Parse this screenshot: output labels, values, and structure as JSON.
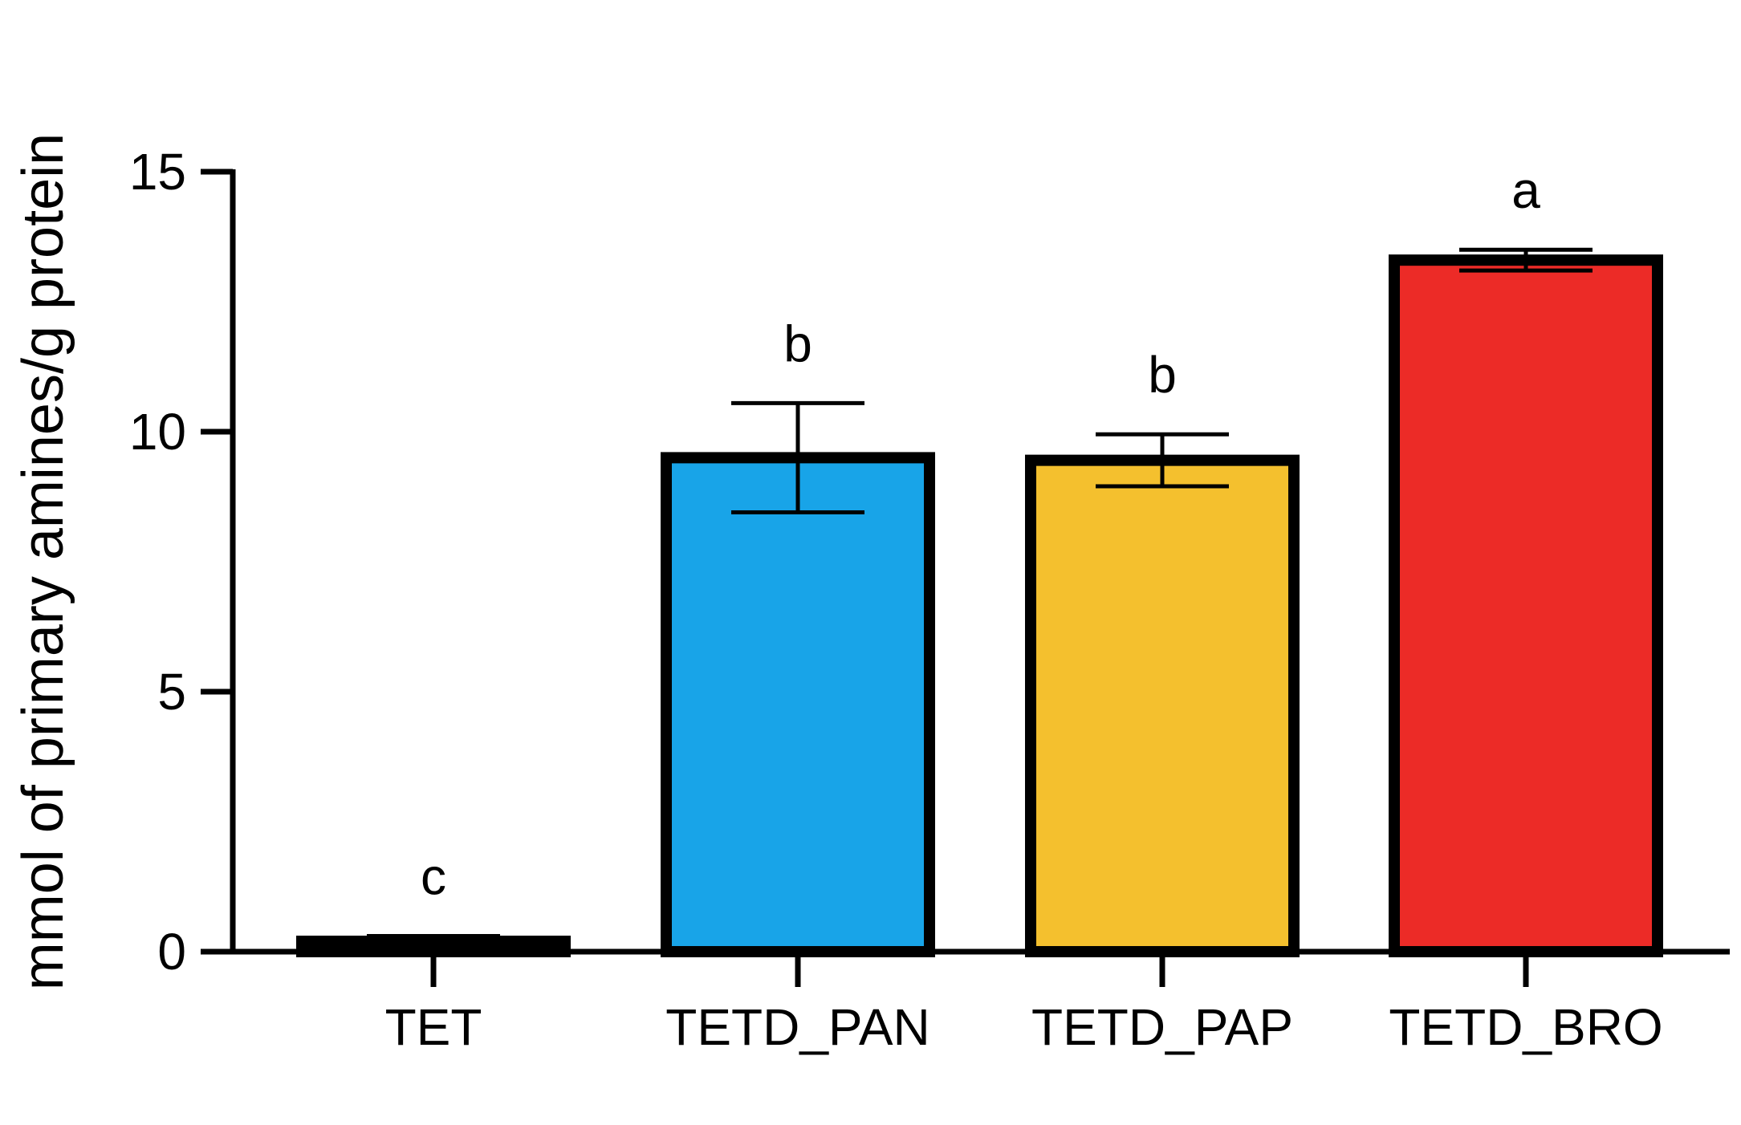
{
  "chart_data": {
    "type": "bar",
    "title": "",
    "xlabel": "",
    "ylabel": "mmol of primary amines/g protein",
    "categories": [
      "TET",
      "TETD_PAN",
      "TETD_PAP",
      "TETD_BRO"
    ],
    "values": [
      0.2,
      9.5,
      9.45,
      13.3
    ],
    "error": [
      0.1,
      1.05,
      0.5,
      0.2
    ],
    "significance": [
      "c",
      "b",
      "b",
      "a"
    ],
    "colors": [
      "#8bd14a",
      "#18a4e8",
      "#f4c02e",
      "#ec2b27"
    ],
    "ylim": [
      0,
      15
    ],
    "yticks": [
      0,
      5,
      10,
      15
    ],
    "ytick_labels": [
      "0",
      "5",
      "10",
      "15"
    ],
    "grid": false,
    "legend": "none"
  }
}
